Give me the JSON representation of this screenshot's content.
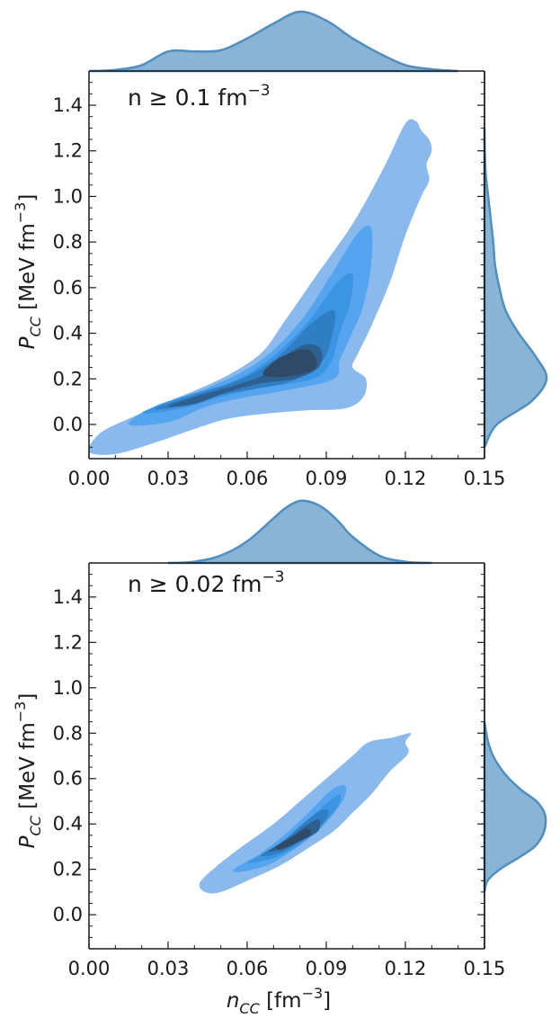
{
  "chart_data": [
    {
      "type": "contour",
      "annotation": "n  ≥  0.1 fm",
      "annotation_sup": "−3",
      "xlabel": "",
      "ylabel": {
        "main": "P",
        "sub": "CC",
        "rest": " [MeV fm",
        "sup": "−3",
        "close": "]"
      },
      "xlim": [
        0.0,
        0.15
      ],
      "ylim": [
        -0.15,
        1.55
      ],
      "x_ticks": [
        "0.00",
        "0.03",
        "0.06",
        "0.09",
        "0.12",
        "0.15"
      ],
      "y_ticks": [
        "0.0",
        "0.2",
        "0.4",
        "0.6",
        "0.8",
        "1.0",
        "1.2",
        "1.4"
      ],
      "contour_levels": [
        {
          "color": "#8ab9ee",
          "points": [
            [
              0.0,
              -0.12
            ],
            [
              0.004,
              -0.04
            ],
            [
              0.014,
              0.02
            ],
            [
              0.03,
              0.1
            ],
            [
              0.05,
              0.2
            ],
            [
              0.065,
              0.31
            ],
            [
              0.074,
              0.45
            ],
            [
              0.086,
              0.65
            ],
            [
              0.1,
              0.88
            ],
            [
              0.112,
              1.13
            ],
            [
              0.12,
              1.32
            ],
            [
              0.124,
              1.33
            ],
            [
              0.126,
              1.29
            ],
            [
              0.129,
              1.25
            ],
            [
              0.13,
              1.2
            ],
            [
              0.128,
              1.14
            ],
            [
              0.129,
              1.07
            ],
            [
              0.126,
              1.0
            ],
            [
              0.12,
              0.83
            ],
            [
              0.114,
              0.62
            ],
            [
              0.107,
              0.43
            ],
            [
              0.102,
              0.31
            ],
            [
              0.1,
              0.25
            ],
            [
              0.105,
              0.2
            ],
            [
              0.104,
              0.12
            ],
            [
              0.097,
              0.07
            ],
            [
              0.08,
              0.06
            ],
            [
              0.055,
              0.03
            ],
            [
              0.04,
              -0.02
            ],
            [
              0.025,
              -0.08
            ],
            [
              0.01,
              -0.13
            ]
          ]
        },
        {
          "color": "#55a4f0",
          "points": [
            [
              0.015,
              0.0
            ],
            [
              0.025,
              0.08
            ],
            [
              0.045,
              0.16
            ],
            [
              0.065,
              0.28
            ],
            [
              0.08,
              0.45
            ],
            [
              0.092,
              0.66
            ],
            [
              0.102,
              0.84
            ],
            [
              0.107,
              0.86
            ],
            [
              0.107,
              0.7
            ],
            [
              0.104,
              0.52
            ],
            [
              0.099,
              0.38
            ],
            [
              0.095,
              0.28
            ],
            [
              0.093,
              0.2
            ],
            [
              0.075,
              0.15
            ],
            [
              0.06,
              0.12
            ],
            [
              0.045,
              0.08
            ],
            [
              0.03,
              0.01
            ]
          ]
        },
        {
          "color": "#3b95e2",
          "points": [
            [
              0.02,
              0.05
            ],
            [
              0.035,
              0.12
            ],
            [
              0.055,
              0.19
            ],
            [
              0.07,
              0.3
            ],
            [
              0.083,
              0.45
            ],
            [
              0.094,
              0.62
            ],
            [
              0.1,
              0.66
            ],
            [
              0.099,
              0.53
            ],
            [
              0.095,
              0.4
            ],
            [
              0.092,
              0.28
            ],
            [
              0.085,
              0.2
            ],
            [
              0.065,
              0.16
            ],
            [
              0.05,
              0.12
            ],
            [
              0.035,
              0.07
            ]
          ]
        },
        {
          "color": "#2f7ec4",
          "points": [
            [
              0.025,
              0.07
            ],
            [
              0.04,
              0.13
            ],
            [
              0.058,
              0.2
            ],
            [
              0.072,
              0.3
            ],
            [
              0.084,
              0.44
            ],
            [
              0.093,
              0.5
            ],
            [
              0.092,
              0.38
            ],
            [
              0.088,
              0.27
            ],
            [
              0.077,
              0.19
            ],
            [
              0.065,
              0.16
            ],
            [
              0.05,
              0.13
            ],
            [
              0.035,
              0.08
            ]
          ]
        },
        {
          "color": "#2e5f8e",
          "points": [
            [
              0.03,
              0.08
            ],
            [
              0.04,
              0.12
            ],
            [
              0.065,
              0.21
            ],
            [
              0.073,
              0.29
            ],
            [
              0.082,
              0.35
            ],
            [
              0.088,
              0.33
            ],
            [
              0.087,
              0.25
            ],
            [
              0.078,
              0.2
            ],
            [
              0.065,
              0.18
            ],
            [
              0.052,
              0.14
            ],
            [
              0.04,
              0.09
            ]
          ]
        },
        {
          "color": "#2e4a66",
          "points": [
            [
              0.066,
              0.22
            ],
            [
              0.072,
              0.29
            ],
            [
              0.082,
              0.33
            ],
            [
              0.086,
              0.29
            ],
            [
              0.085,
              0.24
            ],
            [
              0.075,
              0.21
            ]
          ]
        }
      ],
      "top_marginal": {
        "color": "#8ab4d6",
        "line_color": "#4f8fc0",
        "x": [
          0.0,
          0.01,
          0.02,
          0.03,
          0.04,
          0.05,
          0.06,
          0.07,
          0.08,
          0.09,
          0.1,
          0.11,
          0.12,
          0.13,
          0.14
        ],
        "density": [
          0.0,
          0.02,
          0.1,
          0.33,
          0.33,
          0.35,
          0.55,
          0.8,
          1.0,
          0.85,
          0.55,
          0.3,
          0.1,
          0.03,
          0.0
        ]
      },
      "right_marginal": {
        "color": "#8ab4d6",
        "line_color": "#4f8fc0",
        "y": [
          -0.1,
          0.0,
          0.1,
          0.2,
          0.3,
          0.4,
          0.5,
          0.6,
          0.7,
          0.8,
          0.9,
          1.0,
          1.1,
          1.2,
          1.3
        ],
        "density": [
          0.0,
          0.2,
          0.75,
          1.0,
          0.82,
          0.55,
          0.34,
          0.24,
          0.17,
          0.14,
          0.1,
          0.06,
          0.02,
          0.005,
          0.0
        ]
      }
    },
    {
      "type": "contour",
      "annotation": "n  ≥  0.02 fm",
      "annotation_sup": "−3",
      "xlabel": {
        "main": "n",
        "sub": "CC",
        "rest": " [fm",
        "sup": "−3",
        "close": "]"
      },
      "ylabel": {
        "main": "P",
        "sub": "CC",
        "rest": " [MeV fm",
        "sup": "−3",
        "close": "]"
      },
      "xlim": [
        0.0,
        0.15
      ],
      "ylim": [
        -0.15,
        1.55
      ],
      "x_ticks": [
        "0.00",
        "0.03",
        "0.06",
        "0.09",
        "0.12",
        "0.15"
      ],
      "y_ticks": [
        "0.0",
        "0.2",
        "0.4",
        "0.6",
        "0.8",
        "1.0",
        "1.2",
        "1.4"
      ],
      "contour_levels": [
        {
          "color": "#8ab9ee",
          "points": [
            [
              0.042,
              0.14
            ],
            [
              0.048,
              0.21
            ],
            [
              0.058,
              0.3
            ],
            [
              0.07,
              0.4
            ],
            [
              0.08,
              0.5
            ],
            [
              0.09,
              0.6
            ],
            [
              0.1,
              0.7
            ],
            [
              0.106,
              0.76
            ],
            [
              0.115,
              0.78
            ],
            [
              0.122,
              0.8
            ],
            [
              0.12,
              0.76
            ],
            [
              0.121,
              0.71
            ],
            [
              0.114,
              0.63
            ],
            [
              0.107,
              0.53
            ],
            [
              0.1,
              0.45
            ],
            [
              0.093,
              0.37
            ],
            [
              0.084,
              0.3
            ],
            [
              0.073,
              0.22
            ],
            [
              0.062,
              0.16
            ],
            [
              0.05,
              0.1
            ],
            [
              0.044,
              0.1
            ]
          ]
        },
        {
          "color": "#55a4f0",
          "points": [
            [
              0.055,
              0.2
            ],
            [
              0.065,
              0.27
            ],
            [
              0.075,
              0.36
            ],
            [
              0.085,
              0.47
            ],
            [
              0.092,
              0.55
            ],
            [
              0.097,
              0.57
            ],
            [
              0.097,
              0.52
            ],
            [
              0.093,
              0.45
            ],
            [
              0.087,
              0.37
            ],
            [
              0.078,
              0.29
            ],
            [
              0.068,
              0.22
            ],
            [
              0.058,
              0.19
            ]
          ]
        },
        {
          "color": "#3b95e2",
          "points": [
            [
              0.06,
              0.23
            ],
            [
              0.07,
              0.29
            ],
            [
              0.08,
              0.38
            ],
            [
              0.088,
              0.47
            ],
            [
              0.095,
              0.53
            ],
            [
              0.094,
              0.47
            ],
            [
              0.088,
              0.39
            ],
            [
              0.08,
              0.31
            ],
            [
              0.07,
              0.25
            ]
          ]
        },
        {
          "color": "#2f7ec4",
          "points": [
            [
              0.065,
              0.26
            ],
            [
              0.073,
              0.32
            ],
            [
              0.081,
              0.4
            ],
            [
              0.088,
              0.46
            ],
            [
              0.091,
              0.45
            ],
            [
              0.087,
              0.38
            ],
            [
              0.08,
              0.32
            ],
            [
              0.072,
              0.27
            ]
          ]
        },
        {
          "color": "#2e5f8e",
          "points": [
            [
              0.068,
              0.28
            ],
            [
              0.075,
              0.33
            ],
            [
              0.082,
              0.39
            ],
            [
              0.087,
              0.42
            ],
            [
              0.087,
              0.37
            ],
            [
              0.081,
              0.33
            ],
            [
              0.074,
              0.29
            ]
          ]
        },
        {
          "color": "#2e4a66",
          "points": [
            [
              0.071,
              0.3
            ],
            [
              0.078,
              0.35
            ],
            [
              0.083,
              0.38
            ],
            [
              0.084,
              0.35
            ],
            [
              0.079,
              0.32
            ],
            [
              0.073,
              0.29
            ]
          ]
        }
      ],
      "top_marginal": {
        "color": "#8ab4d6",
        "line_color": "#4f8fc0",
        "x": [
          0.03,
          0.04,
          0.05,
          0.06,
          0.07,
          0.075,
          0.08,
          0.085,
          0.09,
          0.095,
          0.1,
          0.11,
          0.12,
          0.13
        ],
        "density": [
          0.0,
          0.02,
          0.12,
          0.35,
          0.72,
          0.9,
          1.0,
          0.97,
          0.85,
          0.65,
          0.42,
          0.12,
          0.02,
          0.0
        ]
      },
      "right_marginal": {
        "color": "#8ab4d6",
        "line_color": "#4f8fc0",
        "y": [
          0.1,
          0.15,
          0.2,
          0.25,
          0.3,
          0.35,
          0.4,
          0.45,
          0.5,
          0.55,
          0.6,
          0.65,
          0.7,
          0.75,
          0.8,
          0.85
        ],
        "density": [
          0.0,
          0.05,
          0.25,
          0.55,
          0.82,
          0.95,
          1.0,
          0.98,
          0.85,
          0.6,
          0.4,
          0.25,
          0.14,
          0.07,
          0.03,
          0.0
        ]
      }
    }
  ]
}
